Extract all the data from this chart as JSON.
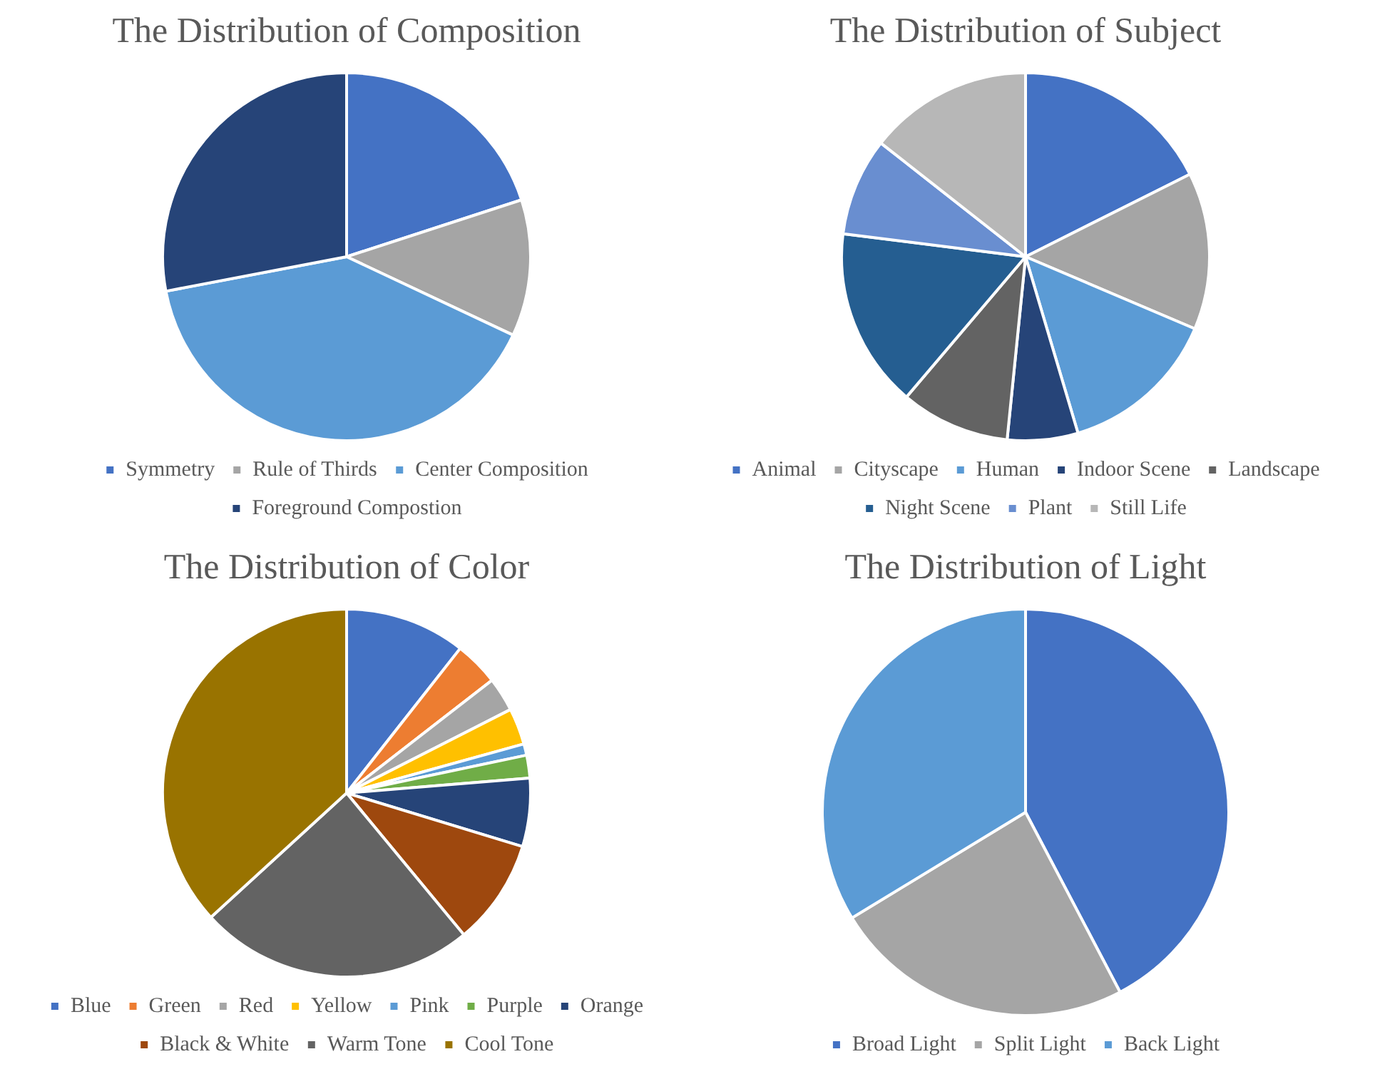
{
  "chart_data": [
    {
      "type": "pie",
      "title": "The Distribution of Composition",
      "categories": [
        "Symmetry",
        "Rule of Thirds",
        "Center Composition",
        "Foreground Compostion"
      ],
      "values": [
        20,
        12,
        40,
        28
      ],
      "colors": [
        "#4472c4",
        "#a5a5a5",
        "#5b9bd5",
        "#264478"
      ],
      "legend": "bottom"
    },
    {
      "type": "pie",
      "title": "The Distribution of Subject",
      "categories": [
        "Animal",
        "Cityscape",
        "Human",
        "Indoor Scene",
        "Landscape",
        "Night Scene",
        "Plant",
        "Still Life"
      ],
      "values": [
        17.6,
        13.8,
        14,
        6.2,
        9.6,
        15.8,
        8.6,
        14.4
      ],
      "colors": [
        "#4472c4",
        "#a5a5a5",
        "#5b9bd5",
        "#264478",
        "#636363",
        "#255e91",
        "#698ed0",
        "#b7b7b7"
      ],
      "legend": "bottom"
    },
    {
      "type": "pie",
      "title": "The Distribution of Color",
      "categories": [
        "Blue",
        "Green",
        "Red",
        "Yellow",
        "Pink",
        "Purple",
        "Orange",
        "Black & White",
        "Warm Tone",
        "Cool Tone"
      ],
      "values": [
        10.6,
        3.9,
        3,
        3.2,
        1,
        2,
        6,
        9.3,
        24.2,
        36.8
      ],
      "colors": [
        "#4472c4",
        "#ed7d31",
        "#a5a5a5",
        "#ffc000",
        "#5b9bd5",
        "#70ad47",
        "#264478",
        "#9e480e",
        "#636363",
        "#997300"
      ],
      "legend": "bottom"
    },
    {
      "type": "pie",
      "title": "The Distribution of Light",
      "categories": [
        "Broad Light",
        "Split Light",
        "Back Light"
      ],
      "values": [
        42.3,
        24,
        33.7
      ],
      "colors": [
        "#4472c4",
        "#a5a5a5",
        "#5b9bd5"
      ],
      "legend": "bottom"
    }
  ]
}
